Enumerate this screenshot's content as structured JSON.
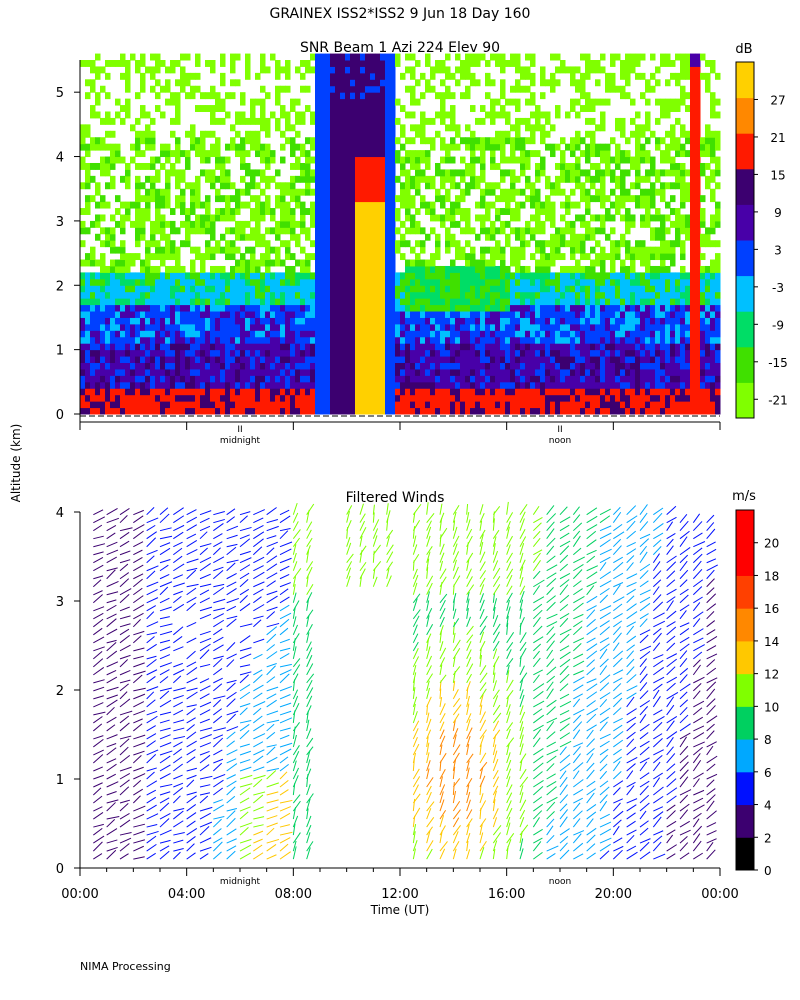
{
  "header": {
    "title": "GRAINEX ISS2*ISS2   9 Jun 18 Day 160"
  },
  "footer": {
    "label": "NIMA Processing"
  },
  "shared_axes": {
    "ylabel": "Altitude (km)"
  },
  "colors": {
    "snr_scale": [
      "#80ff00",
      "#40e000",
      "#00dd66",
      "#00c0ff",
      "#0040ff",
      "#4800a8",
      "#3c0070",
      "#ff1a00",
      "#ff8800",
      "#ffd000"
    ],
    "wind_scale": [
      "#000000",
      "#3c0070",
      "#0010ff",
      "#00a8ff",
      "#00d060",
      "#80ff00",
      "#ffc800",
      "#ff8800",
      "#ff4000",
      "#ff0000"
    ]
  },
  "chart_data": [
    {
      "type": "heatmap",
      "title": "SNR Beam 1 Azi 224 Elev 90",
      "ylabel": "Altitude (km)",
      "ylim": [
        0,
        5.5
      ],
      "y_ticks": [
        "0",
        "1",
        "2",
        "3",
        "4",
        "5"
      ],
      "time_markers": [
        "midnight",
        "noon"
      ],
      "colorbar": {
        "unit": "dB",
        "range": [
          -24,
          33
        ],
        "tick_labels": [
          "27",
          "21",
          "15",
          "9",
          "3",
          "-3",
          "-9",
          "-15",
          "-21"
        ]
      }
    },
    {
      "type": "scatter",
      "subtype": "wind barbs",
      "title": "Filtered Winds",
      "xlabel": "Time (UT)",
      "ylabel": "Altitude (km)",
      "xlim": [
        "00:00",
        "24:00"
      ],
      "ylim": [
        0,
        4
      ],
      "x_tick_labels": [
        "00:00",
        "04:00",
        "08:00",
        "12:00",
        "16:00",
        "20:00",
        "00:00"
      ],
      "y_ticks": [
        "0",
        "1",
        "2",
        "3",
        "4"
      ],
      "time_markers": [
        "midnight",
        "noon"
      ],
      "colorbar": {
        "unit": "m/s",
        "range": [
          0,
          22
        ],
        "tick_labels": [
          "20",
          "18",
          "16",
          "14",
          "12",
          "10",
          "8",
          "6",
          "4",
          "2",
          "0"
        ]
      }
    }
  ]
}
